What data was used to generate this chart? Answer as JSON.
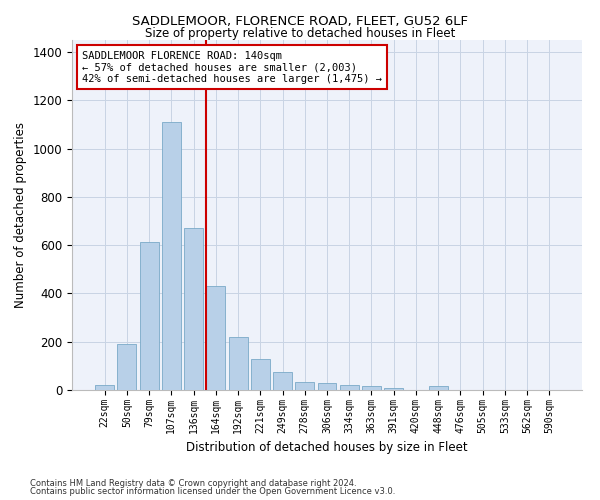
{
  "title1": "SADDLEMOOR, FLORENCE ROAD, FLEET, GU52 6LF",
  "title2": "Size of property relative to detached houses in Fleet",
  "xlabel": "Distribution of detached houses by size in Fleet",
  "ylabel": "Number of detached properties",
  "categories": [
    "22sqm",
    "50sqm",
    "79sqm",
    "107sqm",
    "136sqm",
    "164sqm",
    "192sqm",
    "221sqm",
    "249sqm",
    "278sqm",
    "306sqm",
    "334sqm",
    "363sqm",
    "391sqm",
    "420sqm",
    "448sqm",
    "476sqm",
    "505sqm",
    "533sqm",
    "562sqm",
    "590sqm"
  ],
  "values": [
    20,
    190,
    615,
    1110,
    670,
    430,
    220,
    130,
    75,
    35,
    30,
    20,
    15,
    10,
    0,
    15,
    0,
    0,
    0,
    0,
    0
  ],
  "bar_color": "#b8d0e8",
  "bar_edgecolor": "#7aaac8",
  "redline_x": 4.57,
  "annotation_text": "SADDLEMOOR FLORENCE ROAD: 140sqm\n← 57% of detached houses are smaller (2,003)\n42% of semi-detached houses are larger (1,475) →",
  "annotation_box_color": "#ffffff",
  "annotation_box_edgecolor": "#cc0000",
  "footnote1": "Contains HM Land Registry data © Crown copyright and database right 2024.",
  "footnote2": "Contains public sector information licensed under the Open Government Licence v3.0.",
  "background_color": "#eef2fa",
  "ylim": [
    0,
    1450
  ],
  "yticks": [
    0,
    200,
    400,
    600,
    800,
    1000,
    1200,
    1400
  ]
}
